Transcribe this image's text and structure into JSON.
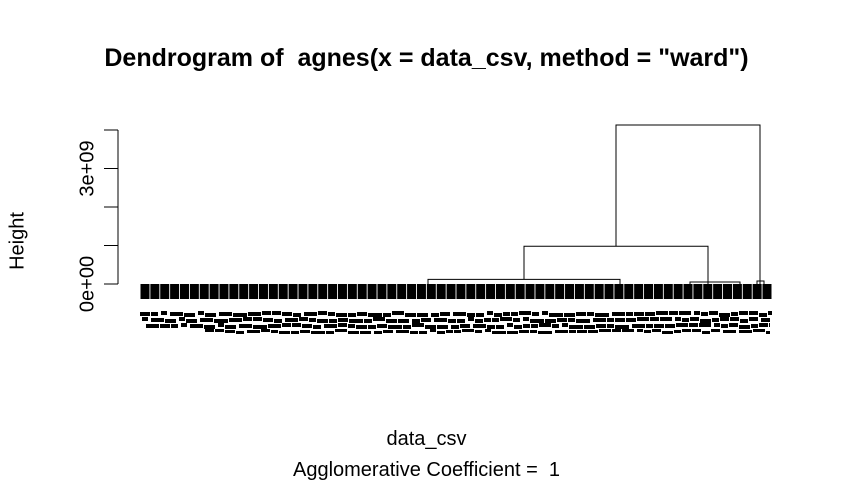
{
  "chart_data": {
    "type": "dendrogram",
    "title": "Dendrogram of  agnes(x = data_csv, method = \"ward\")",
    "xlabel": "data_csv",
    "ylabel": "Height",
    "subtitle": "Agglomerative Coefficient =  1",
    "yticks": [
      0,
      1000000000,
      2000000000,
      3000000000,
      4000000000
    ],
    "ytick_labels": [
      "0e+00",
      "",
      "",
      "3e+09",
      ""
    ],
    "ylim": [
      0,
      4100000000
    ],
    "merges": [
      {
        "left_x": 428,
        "right_x": 620,
        "height": 120000000,
        "child_left_height": 0,
        "child_right_height": 0
      },
      {
        "left_x": 524,
        "right_x": 708,
        "height": 980000000,
        "child_left_height": 120000000,
        "child_right_height": 0
      },
      {
        "left_x": 616,
        "right_x": 760,
        "height": 4130000000,
        "child_left_height": 980000000,
        "child_right_height": 0
      }
    ],
    "leaf_count": 64,
    "leaf_labels_note": ""
  },
  "colors": {
    "foreground": "#000000",
    "background": "#ffffff"
  }
}
